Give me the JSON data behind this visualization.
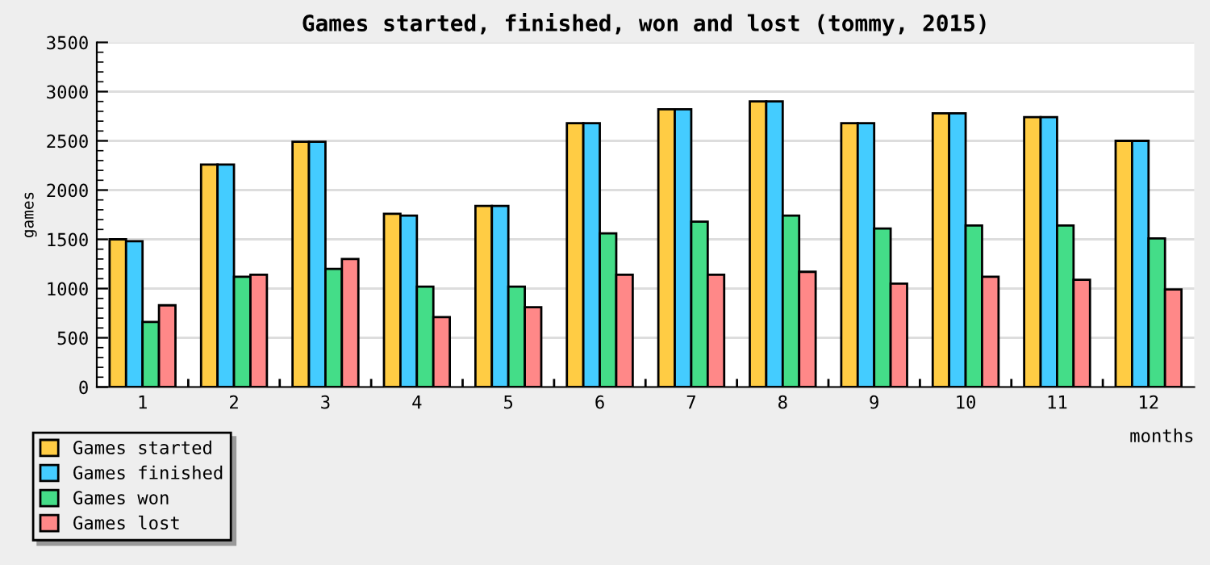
{
  "chart_data": {
    "type": "bar",
    "title": "Games started, finished, won and lost (tommy, 2015)",
    "xlabel": "months",
    "ylabel": "games",
    "categories": [
      "1",
      "2",
      "3",
      "4",
      "5",
      "6",
      "7",
      "8",
      "9",
      "10",
      "11",
      "12"
    ],
    "series": [
      {
        "name": "Games started",
        "color": "#ffcc44",
        "values": [
          1500,
          2260,
          2490,
          1760,
          1840,
          2680,
          2820,
          2900,
          2680,
          2780,
          2740,
          2500
        ]
      },
      {
        "name": "Games finished",
        "color": "#44ccff",
        "values": [
          1480,
          2260,
          2490,
          1740,
          1840,
          2680,
          2820,
          2900,
          2680,
          2780,
          2740,
          2500
        ]
      },
      {
        "name": "Games won",
        "color": "#44dd88",
        "values": [
          660,
          1120,
          1200,
          1020,
          1020,
          1560,
          1680,
          1740,
          1610,
          1640,
          1640,
          1510
        ]
      },
      {
        "name": "Games lost",
        "color": "#ff8888",
        "values": [
          830,
          1140,
          1300,
          710,
          810,
          1140,
          1140,
          1170,
          1050,
          1120,
          1090,
          990
        ]
      }
    ],
    "ylim": [
      0,
      3500
    ],
    "yticks": [
      0,
      500,
      1000,
      1500,
      2000,
      2500,
      3000,
      3500
    ],
    "grid": "y",
    "legend": "bottom left"
  }
}
